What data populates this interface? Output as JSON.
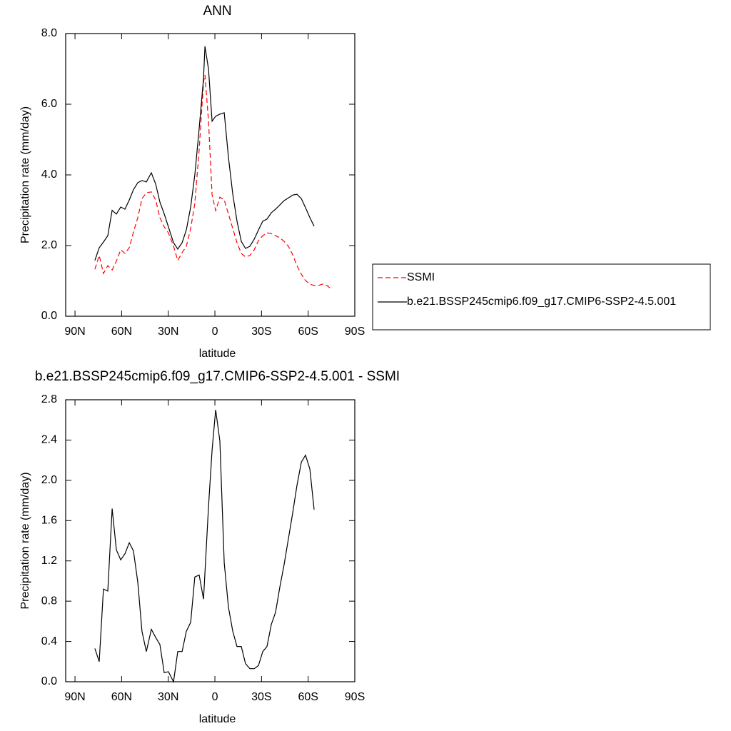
{
  "chart_data": [
    {
      "type": "line",
      "title": "ANN",
      "x_label": "latitude",
      "y_label": "Precipitation rate (mm/day)",
      "x": [
        77.2,
        74.4,
        71.7,
        68.9,
        66.1,
        63.4,
        60.6,
        57.9,
        55.1,
        52.4,
        49.6,
        46.9,
        44.1,
        40.9,
        38.1,
        35.4,
        32.6,
        29.9,
        26.6,
        23.9,
        21.1,
        18.4,
        15.6,
        12.9,
        10.1,
        7.3,
        6.4,
        4.1,
        1.8,
        -0.5,
        -3.2,
        -6.0,
        -8.7,
        -11.5,
        -14.2,
        -17.0,
        -19.7,
        -22.5,
        -25.3,
        -28.0,
        -30.8,
        -33.5,
        -36.3,
        -39.0,
        -41.8,
        -44.5,
        -47.3,
        -50.1,
        -52.8,
        -55.6,
        -58.3,
        -61.1,
        -63.8,
        -66.6,
        -69.3,
        -72.1,
        -74.8
      ],
      "series": [
        {
          "name": "SSMI",
          "color": "#ff0000",
          "line_style": "dashed",
          "values": [
            1.33,
            1.72,
            1.21,
            1.43,
            1.31,
            1.56,
            1.88,
            1.78,
            1.94,
            2.38,
            2.79,
            3.33,
            3.49,
            3.52,
            3.29,
            2.79,
            2.53,
            2.36,
            1.98,
            1.58,
            1.8,
            1.98,
            2.48,
            3.19,
            4.71,
            6.63,
            6.83,
            5.52,
            3.43,
            2.99,
            3.37,
            3.29,
            2.89,
            2.48,
            2.08,
            1.78,
            1.68,
            1.72,
            1.88,
            2.14,
            2.28,
            2.36,
            2.34,
            2.28,
            2.22,
            2.12,
            1.98,
            1.74,
            1.43,
            1.19,
            1.01,
            0.91,
            0.87,
            0.87,
            0.91,
            0.87,
            0.77
          ]
        },
        {
          "name": "b.e21.BSSP245cmip6.f09_g17.CMIP6-SSP2-4.5.001",
          "color": "#000000",
          "line_style": "solid",
          "values": [
            1.58,
            1.94,
            2.1,
            2.28,
            3.0,
            2.89,
            3.09,
            3.03,
            3.29,
            3.58,
            3.78,
            3.84,
            3.8,
            4.06,
            3.74,
            3.23,
            2.9,
            2.53,
            2.08,
            1.9,
            2.08,
            2.44,
            3.09,
            4.0,
            5.31,
            6.73,
            7.64,
            6.99,
            5.52,
            5.66,
            5.72,
            5.76,
            4.5,
            3.45,
            2.69,
            2.12,
            1.92,
            1.98,
            2.18,
            2.44,
            2.69,
            2.75,
            2.93,
            3.03,
            3.15,
            3.27,
            3.35,
            3.43,
            3.45,
            3.33,
            3.07,
            2.79,
            2.55,
            null,
            null,
            null,
            null
          ]
        }
      ],
      "xlim": [
        96,
        -90
      ],
      "xticks": [
        {
          "value": 90,
          "label": "90N"
        },
        {
          "value": 60,
          "label": "60N"
        },
        {
          "value": 30,
          "label": "30N"
        },
        0,
        {
          "value": -30,
          "label": "30S"
        },
        {
          "value": -60,
          "label": "60S"
        },
        {
          "value": -90,
          "label": "90S"
        }
      ],
      "ylim": [
        0,
        8
      ],
      "yticks": [
        {
          "value": 0,
          "label": "0.0"
        },
        {
          "value": 2,
          "label": "2.0"
        },
        {
          "value": 4,
          "label": "4.0"
        },
        {
          "value": 6,
          "label": "6.0"
        },
        {
          "value": 8,
          "label": "8.0"
        }
      ],
      "legend": "right"
    },
    {
      "type": "line",
      "title": "b.e21.BSSP245cmip6.f09_g17.CMIP6-SSP2-4.5.001 - SSMI",
      "x_label": "latitude",
      "y_label": "Precipitation rate (mm/day)",
      "x": [
        77.2,
        74.4,
        71.7,
        68.9,
        66.1,
        63.4,
        60.6,
        57.9,
        55.1,
        52.4,
        49.6,
        46.9,
        44.1,
        40.9,
        38.1,
        35.4,
        32.6,
        29.9,
        26.6,
        23.9,
        21.1,
        18.4,
        15.6,
        12.9,
        10.1,
        7.3,
        4.1,
        1.8,
        -0.5,
        -3.2,
        -6.0,
        -8.7,
        -11.5,
        -14.2,
        -17.0,
        -19.7,
        -22.5,
        -25.3,
        -28.0,
        -30.8,
        -33.5,
        -36.3,
        -39.0,
        -41.8,
        -44.5,
        -47.3,
        -50.1,
        -52.8,
        -55.6,
        -58.3,
        -61.1,
        -63.8
      ],
      "series": [
        {
          "color": "#000000",
          "line_style": "solid",
          "values": [
            0.33,
            0.2,
            0.92,
            0.9,
            1.72,
            1.31,
            1.21,
            1.27,
            1.38,
            1.3,
            0.99,
            0.5,
            0.3,
            0.52,
            0.44,
            0.37,
            0.09,
            0.1,
            0.0,
            0.3,
            0.3,
            0.5,
            0.59,
            1.04,
            1.06,
            0.82,
            1.74,
            2.3,
            2.7,
            2.39,
            1.18,
            0.74,
            0.5,
            0.35,
            0.35,
            0.18,
            0.13,
            0.13,
            0.16,
            0.3,
            0.35,
            0.57,
            0.69,
            0.94,
            1.16,
            1.42,
            1.68,
            1.95,
            2.18,
            2.25,
            2.11,
            1.71
          ]
        }
      ],
      "xlim": [
        96,
        -90
      ],
      "xticks": [
        {
          "value": 90,
          "label": "90N"
        },
        {
          "value": 60,
          "label": "60N"
        },
        {
          "value": 30,
          "label": "30N"
        },
        0,
        {
          "value": -30,
          "label": "30S"
        },
        {
          "value": -60,
          "label": "60S"
        },
        {
          "value": -90,
          "label": "90S"
        }
      ],
      "ylim": [
        0,
        2.8
      ],
      "yticks": [
        {
          "value": 0,
          "label": "0.0"
        },
        {
          "value": 0.4,
          "label": "0.4"
        },
        {
          "value": 0.8,
          "label": "0.8"
        },
        {
          "value": 1.2,
          "label": "1.2"
        },
        {
          "value": 1.6,
          "label": "1.6"
        },
        {
          "value": 2.0,
          "label": "2.0"
        },
        {
          "value": 2.4,
          "label": "2.4"
        },
        {
          "value": 2.8,
          "label": "2.8"
        }
      ]
    }
  ]
}
